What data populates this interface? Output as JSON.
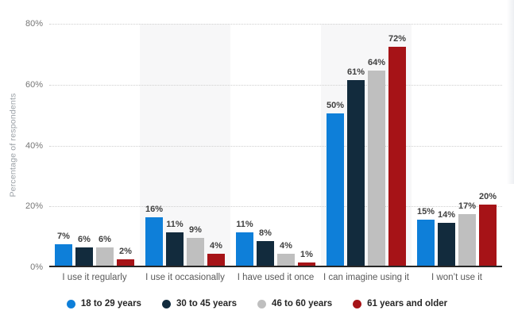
{
  "chart_data": {
    "type": "bar",
    "title": "",
    "categories": [
      "I use it regularly",
      "I use it occasionally",
      "I have used it once",
      "I can imagine using it",
      "I won’t use it"
    ],
    "series": [
      {
        "name": "18 to 29 years",
        "color": "#0e7fd9",
        "values": [
          7,
          16,
          11,
          50,
          15
        ]
      },
      {
        "name": "30 to 45 years",
        "color": "#122b3d",
        "values": [
          6,
          11,
          8,
          61,
          14
        ]
      },
      {
        "name": "46 to 60 years",
        "color": "#bfbfbf",
        "values": [
          6,
          9,
          4,
          64,
          17
        ]
      },
      {
        "name": "61 years and older",
        "color": "#a61317",
        "values": [
          2,
          4,
          1,
          72,
          20
        ]
      }
    ],
    "ylabel": "Percentage of respondents",
    "xlabel": "",
    "ylim": [
      0,
      80
    ],
    "yticks": [
      {
        "value": 0,
        "label": "0%"
      },
      {
        "value": 20,
        "label": "20%"
      },
      {
        "value": 40,
        "label": "40%"
      },
      {
        "value": 60,
        "label": "60%"
      },
      {
        "value": 80,
        "label": "80%"
      }
    ],
    "value_label_suffix": "%",
    "grid": "horizontal-dotted",
    "legend_position": "bottom",
    "shaded_category_columns": [
      1,
      3
    ]
  },
  "style_colors": {
    "band": "#f7f7f8",
    "grid": "#cfcfcf",
    "axis": "#262626",
    "value_label": "#404040",
    "tick_label": "#767676",
    "category_label": "#595959",
    "y_title": "#9aa0a6",
    "background": "#ffffff"
  }
}
